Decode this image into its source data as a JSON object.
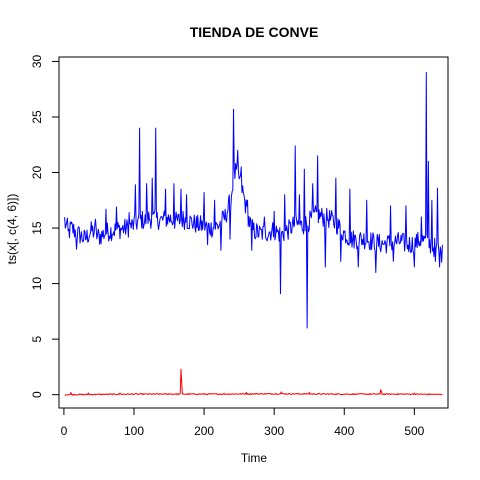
{
  "chart_data": {
    "type": "line",
    "title": "TIENDA DE CONVE",
    "xlabel": "Time",
    "ylabel": "ts(x[, c(4, 6)])",
    "xlim": [
      -7,
      548
    ],
    "ylim": [
      -1.2,
      30.4
    ],
    "xticks": [
      0,
      100,
      200,
      300,
      400,
      500
    ],
    "yticks": [
      0,
      5,
      10,
      15,
      20,
      25,
      30
    ],
    "grid": false,
    "legend": "none",
    "colors": {
      "series1": "#0000ff",
      "series2": "#ff0000"
    },
    "x_start": 1,
    "x_end": 540,
    "series": [
      {
        "color": "#0000ff",
        "knots": [
          [
            1,
            15.7
          ],
          [
            5,
            14.3
          ],
          [
            10,
            15.0
          ],
          [
            20,
            14.5
          ],
          [
            30,
            14.0
          ],
          [
            40,
            14.8
          ],
          [
            50,
            14.2
          ],
          [
            60,
            14.6
          ],
          [
            70,
            14.8
          ],
          [
            80,
            14.9
          ],
          [
            90,
            15.0
          ],
          [
            100,
            15.3
          ],
          [
            105,
            15.5
          ],
          [
            110,
            15.8
          ],
          [
            115,
            15.6
          ],
          [
            120,
            15.9
          ],
          [
            130,
            15.8
          ],
          [
            140,
            15.7
          ],
          [
            150,
            15.9
          ],
          [
            160,
            15.6
          ],
          [
            170,
            15.8
          ],
          [
            180,
            15.6
          ],
          [
            190,
            15.3
          ],
          [
            200,
            15.2
          ],
          [
            210,
            15.0
          ],
          [
            220,
            15.2
          ],
          [
            230,
            16.0
          ],
          [
            238,
            17.5
          ],
          [
            242,
            19.5
          ],
          [
            245,
            20.0
          ],
          [
            250,
            19.5
          ],
          [
            255,
            18.3
          ],
          [
            260,
            16.8
          ],
          [
            265,
            15.5
          ],
          [
            270,
            14.8
          ],
          [
            280,
            14.5
          ],
          [
            290,
            14.6
          ],
          [
            300,
            14.8
          ],
          [
            310,
            14.4
          ],
          [
            320,
            14.8
          ],
          [
            330,
            15.4
          ],
          [
            340,
            15.2
          ],
          [
            350,
            15.6
          ],
          [
            360,
            16.2
          ],
          [
            370,
            16.0
          ],
          [
            380,
            15.8
          ],
          [
            390,
            15.3
          ],
          [
            400,
            14.5
          ],
          [
            410,
            14.0
          ],
          [
            420,
            14.0
          ],
          [
            430,
            14.0
          ],
          [
            440,
            13.8
          ],
          [
            450,
            13.6
          ],
          [
            460,
            13.6
          ],
          [
            470,
            13.7
          ],
          [
            480,
            13.8
          ],
          [
            490,
            13.5
          ],
          [
            500,
            13.6
          ],
          [
            510,
            14.0
          ],
          [
            520,
            13.6
          ],
          [
            530,
            13.2
          ],
          [
            540,
            12.7
          ]
        ],
        "spikes": [
          [
            5,
            15.9
          ],
          [
            18,
            13.1
          ],
          [
            45,
            15.8
          ],
          [
            60,
            16.7
          ],
          [
            75,
            16.9
          ],
          [
            93,
            16.4
          ],
          [
            102,
            18.9
          ],
          [
            108,
            24.0
          ],
          [
            118,
            19.0
          ],
          [
            126,
            19.5
          ],
          [
            131,
            24.0
          ],
          [
            145,
            18.5
          ],
          [
            157,
            19.0
          ],
          [
            167,
            18.5
          ],
          [
            175,
            18.0
          ],
          [
            200,
            18.2
          ],
          [
            205,
            13.5
          ],
          [
            215,
            17.5
          ],
          [
            224,
            13.0
          ],
          [
            237,
            14.0
          ],
          [
            242,
            25.7
          ],
          [
            248,
            22.0
          ],
          [
            253,
            20.5
          ],
          [
            262,
            17.5
          ],
          [
            268,
            13.0
          ],
          [
            286,
            16.0
          ],
          [
            300,
            16.5
          ],
          [
            309,
            9.1
          ],
          [
            315,
            18.0
          ],
          [
            330,
            22.4
          ],
          [
            336,
            18.0
          ],
          [
            343,
            20.3
          ],
          [
            347,
            6.0
          ],
          [
            355,
            19.0
          ],
          [
            362,
            21.5
          ],
          [
            373,
            11.5
          ],
          [
            388,
            19.5
          ],
          [
            395,
            12.0
          ],
          [
            408,
            18.5
          ],
          [
            420,
            11.5
          ],
          [
            432,
            17.5
          ],
          [
            445,
            11.0
          ],
          [
            466,
            17.0
          ],
          [
            470,
            12.0
          ],
          [
            488,
            17.0
          ],
          [
            500,
            11.5
          ],
          [
            510,
            16.0
          ],
          [
            517,
            29.0
          ],
          [
            520,
            21.0
          ],
          [
            525,
            17.5
          ],
          [
            530,
            12.0
          ],
          [
            533,
            18.6
          ],
          [
            536,
            11.5
          ]
        ],
        "noise": 0.9
      },
      {
        "color": "#ff0000",
        "knots": [
          [
            1,
            0.0
          ],
          [
            100,
            0.05
          ],
          [
            200,
            0.05
          ],
          [
            300,
            0.08
          ],
          [
            400,
            0.05
          ],
          [
            500,
            0.05
          ],
          [
            540,
            0.02
          ]
        ],
        "spikes": [
          [
            10,
            0.2
          ],
          [
            35,
            0.15
          ],
          [
            80,
            0.15
          ],
          [
            150,
            0.1
          ],
          [
            167,
            2.3
          ],
          [
            168,
            1.2
          ],
          [
            260,
            0.2
          ],
          [
            310,
            0.25
          ],
          [
            350,
            0.2
          ],
          [
            452,
            0.45
          ],
          [
            453,
            0.3
          ],
          [
            500,
            0.15
          ]
        ],
        "noise": 0.05
      }
    ]
  }
}
